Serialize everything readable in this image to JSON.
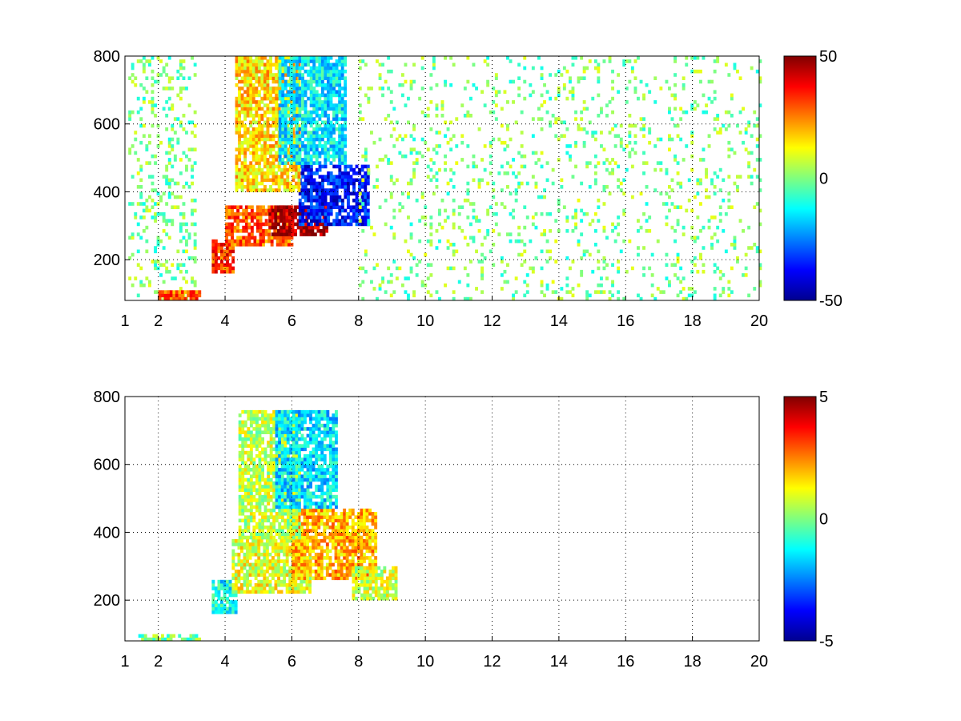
{
  "chart_data": [
    {
      "type": "heatmap",
      "title": "",
      "xlabel": "",
      "ylabel": "",
      "xlim": [
        1,
        20
      ],
      "ylim": [
        80,
        800
      ],
      "xticks": [
        1,
        2,
        4,
        6,
        8,
        10,
        12,
        14,
        16,
        18,
        20
      ],
      "yticks": [
        200,
        400,
        600,
        800
      ],
      "grid": true,
      "colormap": "jet",
      "colorbar": {
        "min": -50,
        "max": 50,
        "ticks": [
          -50,
          0,
          50
        ]
      },
      "features": [
        {
          "x_range": [
            1.1,
            3.1
          ],
          "y_range": [
            80,
            800
          ],
          "value": 0,
          "density": 0.2
        },
        {
          "x_range": [
            3.6,
            4.2
          ],
          "y_range": [
            160,
            260
          ],
          "value": 32
        },
        {
          "x_range": [
            4.0,
            6.0
          ],
          "y_range": [
            240,
            360
          ],
          "value": 28
        },
        {
          "x_range": [
            5.3,
            7.0
          ],
          "y_range": [
            270,
            360
          ],
          "value": 45
        },
        {
          "x_range": [
            6.2,
            8.3
          ],
          "y_range": [
            300,
            480
          ],
          "value": -36
        },
        {
          "x_range": [
            4.3,
            6.2
          ],
          "y_range": [
            400,
            800
          ],
          "value": 16
        },
        {
          "x_range": [
            5.6,
            7.6
          ],
          "y_range": [
            480,
            800
          ],
          "value": -14
        },
        {
          "x_range": [
            8.0,
            20.0
          ],
          "y_range": [
            80,
            800
          ],
          "value": 0,
          "density": 0.12
        },
        {
          "x_range": [
            2.0,
            3.2
          ],
          "y_range": [
            80,
            110
          ],
          "value": 28
        }
      ]
    },
    {
      "type": "heatmap",
      "title": "",
      "xlabel": "",
      "ylabel": "",
      "xlim": [
        1,
        20
      ],
      "ylim": [
        80,
        800
      ],
      "xticks": [
        1,
        2,
        4,
        6,
        8,
        10,
        12,
        14,
        16,
        18,
        20
      ],
      "yticks": [
        200,
        400,
        600,
        800
      ],
      "grid": true,
      "colormap": "jet",
      "colorbar": {
        "min": -5,
        "max": 5,
        "ticks": [
          -5,
          0,
          5
        ]
      },
      "features": [
        {
          "x_range": [
            3.6,
            4.3
          ],
          "y_range": [
            160,
            260
          ],
          "value": -1.2
        },
        {
          "x_range": [
            4.2,
            6.5
          ],
          "y_range": [
            220,
            380
          ],
          "value": 1.0
        },
        {
          "x_range": [
            6.0,
            8.5
          ],
          "y_range": [
            260,
            470
          ],
          "value": 2.0
        },
        {
          "x_range": [
            4.4,
            6.2
          ],
          "y_range": [
            380,
            760
          ],
          "value": 0.6
        },
        {
          "x_range": [
            5.5,
            7.3
          ],
          "y_range": [
            470,
            760
          ],
          "value": -1.5
        },
        {
          "x_range": [
            7.8,
            9.1
          ],
          "y_range": [
            200,
            300
          ],
          "value": 0.8
        },
        {
          "x_range": [
            1.4,
            3.2
          ],
          "y_range": [
            80,
            100
          ],
          "value": -0.2
        }
      ]
    }
  ]
}
